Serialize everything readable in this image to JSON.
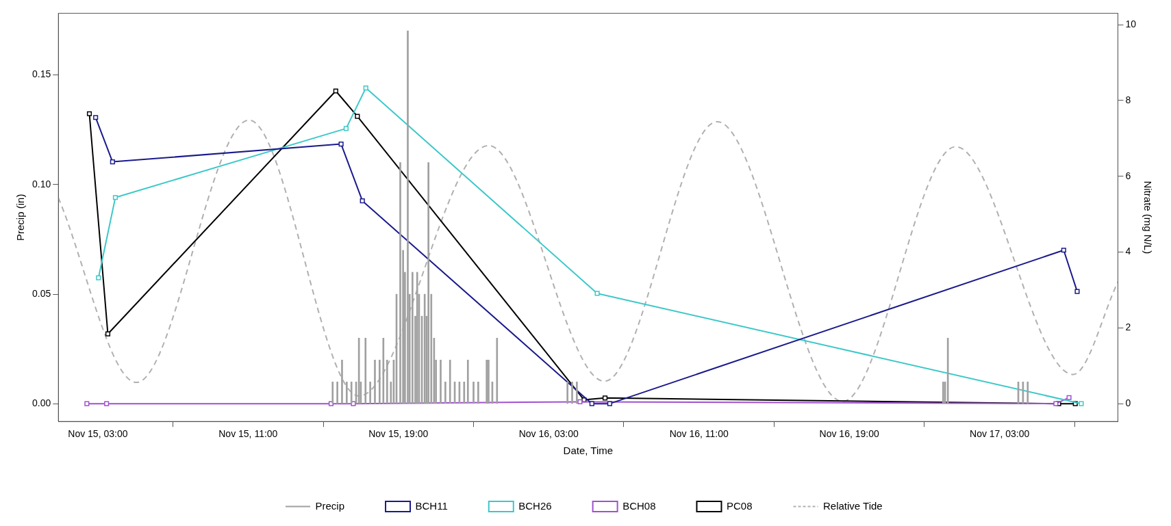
{
  "chart_data": {
    "type": "line",
    "xlabel": "Date, Time",
    "ylabel": "Precip (in)",
    "y2label": "Nitrate (mg N/L)",
    "xlim": [
      "--11-15T00:54",
      "--11-17T09:18"
    ],
    "xticks": [
      {
        "value": "--11-15T03:00",
        "label": "Nov 15, 03:00"
      },
      {
        "value": "--11-15T11:00",
        "label": "Nov 15, 11:00"
      },
      {
        "value": "--11-15T19:00",
        "label": "Nov 15, 19:00"
      },
      {
        "value": "--11-16T03:00",
        "label": "Nov 16, 03:00"
      },
      {
        "value": "--11-16T11:00",
        "label": "Nov 16, 11:00"
      },
      {
        "value": "--11-16T19:00",
        "label": "Nov 16, 19:00"
      },
      {
        "value": "--11-17T03:00",
        "label": "Nov 17, 03:00"
      }
    ],
    "ylim": [
      -0.008,
      0.178
    ],
    "yticks": [
      {
        "value": 0,
        "label": "0.00"
      },
      {
        "value": 0.05,
        "label": "0.05"
      },
      {
        "value": 0.1,
        "label": "0.10"
      },
      {
        "value": 0.15,
        "label": "0.15"
      }
    ],
    "y2lim": [
      -0.47,
      10.3
    ],
    "y2ticks": [
      0,
      2,
      4,
      6,
      8,
      10
    ],
    "grid": false,
    "legend": "bottom",
    "marker": "square",
    "series": [
      {
        "name": "Precip",
        "type": "bar",
        "color": "#a0a0a0",
        "x": [
          "--11-15T15:30",
          "--11-15T15:45",
          "--11-15T16:00",
          "--11-15T16:15",
          "--11-15T16:30",
          "--11-15T16:45",
          "--11-15T16:54",
          "--11-15T17:00",
          "--11-15T17:15",
          "--11-15T17:30",
          "--11-15T17:45",
          "--11-15T18:00",
          "--11-15T18:12",
          "--11-15T18:24",
          "--11-15T18:36",
          "--11-15T18:45",
          "--11-15T18:54",
          "--11-15T19:06",
          "--11-15T19:15",
          "--11-15T19:21",
          "--11-15T19:30",
          "--11-15T19:36",
          "--11-15T19:45",
          "--11-15T19:54",
          "--11-15T20:00",
          "--11-15T20:06",
          "--11-15T20:15",
          "--11-15T20:24",
          "--11-15T20:30",
          "--11-15T20:36",
          "--11-15T20:45",
          "--11-15T20:54",
          "--11-15T21:00",
          "--11-15T21:15",
          "--11-15T21:30",
          "--11-15T21:45",
          "--11-15T22:00",
          "--11-15T22:15",
          "--11-15T22:30",
          "--11-15T22:42",
          "--11-15T23:00",
          "--11-15T23:15",
          "--11-15T23:42",
          "--11-15T23:48",
          "--11-16T00:00",
          "--11-16T00:15",
          "--11-16T04:00",
          "--11-16T04:15",
          "--11-16T04:30",
          "--11-17T00:00",
          "--11-17T00:06",
          "--11-17T00:15",
          "--11-17T04:00",
          "--11-17T04:15",
          "--11-17T04:30"
        ],
        "values": [
          0.01,
          0.01,
          0.02,
          0.01,
          0.01,
          0.01,
          0.03,
          0.01,
          0.03,
          0.01,
          0.02,
          0.02,
          0.03,
          0.02,
          0.01,
          0.02,
          0.05,
          0.11,
          0.07,
          0.06,
          0.17,
          0.05,
          0.06,
          0.04,
          0.06,
          0.05,
          0.04,
          0.05,
          0.04,
          0.11,
          0.05,
          0.03,
          0.02,
          0.02,
          0.01,
          0.02,
          0.01,
          0.01,
          0.01,
          0.02,
          0.01,
          0.01,
          0.02,
          0.02,
          0.01,
          0.03,
          0.01,
          0.01,
          0.01,
          0.01,
          0.01,
          0.03,
          0.01,
          0.01,
          0.01
        ]
      },
      {
        "name": "BCH11",
        "axis": "y2",
        "color": "#1a1a8c",
        "x": [
          "--11-15T02:53",
          "--11-15T03:47",
          "--11-15T15:57",
          "--11-15T17:05",
          "--11-16T05:18",
          "--11-16T06:15",
          "--11-17T06:25",
          "--11-17T07:08"
        ],
        "values": [
          7.55,
          6.38,
          6.85,
          5.35,
          0,
          0,
          4.05,
          2.96
        ]
      },
      {
        "name": "BCH26",
        "axis": "y2",
        "color": "#3cc8c8",
        "x": [
          "--11-15T03:02",
          "--11-15T03:56",
          "--11-15T16:13",
          "--11-15T17:16",
          "--11-16T05:35",
          "--11-17T07:21"
        ],
        "values": [
          3.32,
          5.44,
          7.26,
          8.33,
          2.91,
          0
        ]
      },
      {
        "name": "BCH08",
        "axis": "y2",
        "color": "#a050d0",
        "x": [
          "--11-15T02:25",
          "--11-15T03:28",
          "--11-15T15:25",
          "--11-15T16:36",
          "--11-16T04:40",
          "--11-17T06:00",
          "--11-17T06:42"
        ],
        "values": [
          0,
          0,
          0,
          0,
          0.05,
          0,
          0.16
        ]
      },
      {
        "name": "PC08",
        "axis": "y2",
        "color": "#000000",
        "x": [
          "--11-15T02:33",
          "--11-15T03:32",
          "--11-15T15:40",
          "--11-15T16:49",
          "--11-16T04:53",
          "--11-16T06:00",
          "--11-17T06:09",
          "--11-17T07:02"
        ],
        "values": [
          7.65,
          1.84,
          8.25,
          7.58,
          0.1,
          0.15,
          0,
          0
        ]
      },
      {
        "name": "Relative Tide",
        "axis": "y2",
        "color": "#b0b0b0",
        "marker": "none",
        "line_style": "dashed",
        "x": [
          "--11-15T00:54",
          "--11-15T05:03",
          "--11-15T11:03",
          "--11-15T16:54",
          "--11-15T23:48",
          "--11-16T05:58",
          "--11-16T11:58",
          "--11-16T18:39",
          "--11-17T00:40",
          "--11-17T06:55",
          "--11-17T09:18"
        ],
        "values": [
          5.43,
          0.56,
          7.48,
          0.2,
          6.81,
          0.59,
          7.44,
          0.06,
          6.78,
          0.77,
          3.21
        ]
      }
    ]
  }
}
